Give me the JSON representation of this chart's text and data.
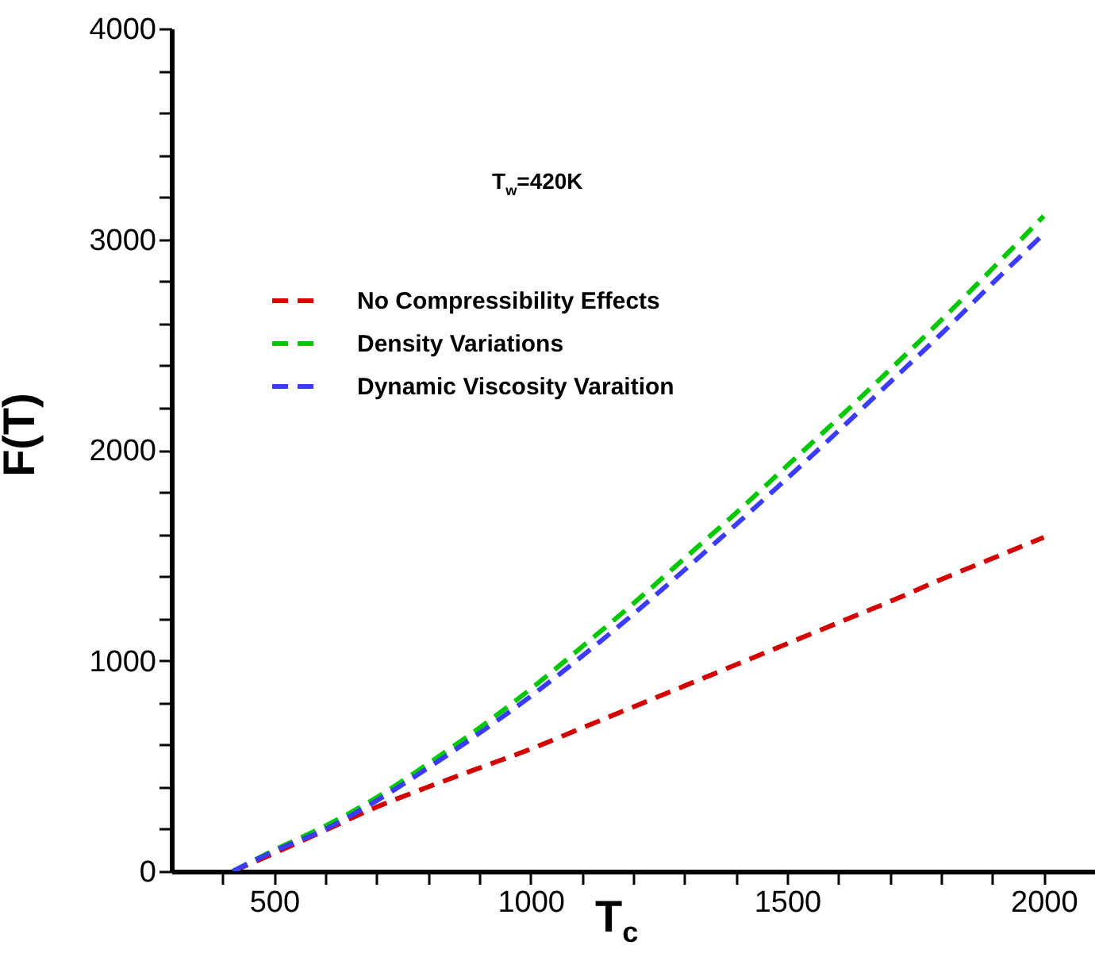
{
  "chart_data": {
    "type": "line",
    "xlabel": "T$_{c}$",
    "ylabel": "F(T)",
    "annotations": [
      "T$_{w}$=420K"
    ],
    "xlim": [
      300,
      2100
    ],
    "xticks": [
      {
        "value": 400,
        "label": null
      },
      500,
      {
        "value": 600,
        "label": null
      },
      {
        "value": 700,
        "label": null
      },
      {
        "value": 800,
        "label": null
      },
      {
        "value": 900,
        "label": null
      },
      1000,
      {
        "value": 1100,
        "label": null
      },
      {
        "value": 1200,
        "label": null
      },
      {
        "value": 1300,
        "label": null
      },
      {
        "value": 1400,
        "label": null
      },
      1500,
      {
        "value": 1600,
        "label": null
      },
      {
        "value": 1700,
        "label": null
      },
      {
        "value": 1800,
        "label": null
      },
      {
        "value": 1900,
        "label": null
      },
      2000
    ],
    "ylim": [
      0,
      4000
    ],
    "yticks": [
      0,
      {
        "value": 200,
        "label": null
      },
      {
        "value": 400,
        "label": null
      },
      {
        "value": 600,
        "label": null
      },
      {
        "value": 800,
        "label": null
      },
      1000,
      {
        "value": 1200,
        "label": null
      },
      {
        "value": 1400,
        "label": null
      },
      {
        "value": 1600,
        "label": null
      },
      {
        "value": 1800,
        "label": null
      },
      2000,
      {
        "value": 2200,
        "label": null
      },
      {
        "value": 2400,
        "label": null
      },
      {
        "value": 2600,
        "label": null
      },
      {
        "value": 2800,
        "label": null
      },
      3000,
      {
        "value": 3200,
        "label": null
      },
      {
        "value": 3400,
        "label": null
      },
      {
        "value": 3600,
        "label": null
      },
      {
        "value": 3800,
        "label": null
      },
      4000
    ],
    "grid": false,
    "legend": "top left",
    "line_style": "dashed",
    "marker": "none",
    "series": [
      {
        "name": "No Compressibility Effects",
        "color": "#d40000",
        "x": [
          420,
          500,
          600,
          700,
          800,
          900,
          1000,
          1100,
          1200,
          1300,
          1400,
          1500,
          1600,
          1700,
          1800,
          1900,
          2000
        ],
        "values": [
          0,
          85,
          195,
          305,
          400,
          490,
          580,
          680,
          780,
          880,
          980,
          1080,
          1180,
          1280,
          1385,
          1485,
          1585
        ]
      },
      {
        "name": "Density Variations",
        "color": "#00c800",
        "x": [
          420,
          500,
          600,
          700,
          800,
          900,
          1000,
          1100,
          1200,
          1300,
          1400,
          1500,
          1600,
          1700,
          1800,
          1900,
          2000
        ],
        "values": [
          0,
          100,
          215,
          350,
          510,
          680,
          865,
          1065,
          1270,
          1485,
          1700,
          1925,
          2150,
          2380,
          2615,
          2860,
          3110
        ]
      },
      {
        "name": "Dynamic Viscosity Varaition",
        "color": "#3c3cff",
        "x": [
          420,
          500,
          600,
          700,
          800,
          900,
          1000,
          1100,
          1200,
          1300,
          1400,
          1500,
          1600,
          1700,
          1800,
          1900,
          2000
        ],
        "values": [
          0,
          95,
          200,
          335,
          490,
          655,
          830,
          1020,
          1220,
          1430,
          1645,
          1865,
          2090,
          2320,
          2550,
          2790,
          3025
        ]
      }
    ]
  }
}
